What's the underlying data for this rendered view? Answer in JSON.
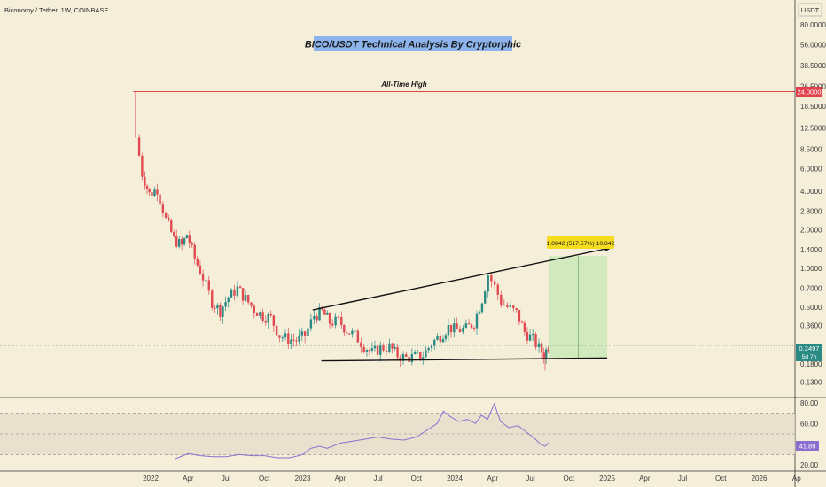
{
  "header": {
    "symbol_info": "Biconomy / Tether, 1W, COINBASE",
    "currency": "USDT"
  },
  "annotations": {
    "title": "BICO/USDT Technical Analysis By Cryptorphic",
    "ath_label": "All-Time High",
    "measure_label": "1.0842 (517.57%) 10,842",
    "ath_price": "24.0000",
    "current_price": "0.2497",
    "countdown": "5d 7h",
    "rsi_value": "41.89"
  },
  "colors": {
    "background": "#f5efda",
    "up_candle": "#2a8a84",
    "down_candle": "#e04a50",
    "ath_line": "#e0414b",
    "rsi_line": "#8a6fd0",
    "target_zone": "#cde8b8",
    "title_bg": "#8db4ec"
  },
  "chart_data": [
    {
      "type": "candlestick",
      "scale": "log",
      "ylim": [
        0.11,
        100
      ],
      "price_ticks": [
        "80.0000",
        "56.0000",
        "38.5000",
        "26.5000",
        "18.5000",
        "12.5000",
        "8.5000",
        "6.0000",
        "4.0000",
        "2.8000",
        "2.0000",
        "1.4000",
        "1.0000",
        "0.7000",
        "0.5000",
        "0.3600",
        "0.2497",
        "0.1800",
        "0.1300"
      ],
      "x_ticks": [
        "2022",
        "Apr",
        "Jul",
        "Oct",
        "2023",
        "Apr",
        "Jul",
        "Oct",
        "2024",
        "Apr",
        "Jul",
        "Oct",
        "2025",
        "Apr",
        "Jul",
        "Oct",
        "2026",
        "Ap"
      ],
      "price_path": [
        [
          "2021-12-01",
          10.5
        ],
        [
          "2021-12-15",
          5.5
        ],
        [
          "2022-01-01",
          3.8
        ],
        [
          "2022-01-20",
          4.2
        ],
        [
          "2022-02-10",
          2.4
        ],
        [
          "2022-03-01",
          1.7
        ],
        [
          "2022-03-20",
          1.5
        ],
        [
          "2022-04-01",
          1.85
        ],
        [
          "2022-04-20",
          1.2
        ],
        [
          "2022-05-10",
          0.85
        ],
        [
          "2022-06-01",
          0.55
        ],
        [
          "2022-06-20",
          0.47
        ],
        [
          "2022-07-10",
          0.6
        ],
        [
          "2022-08-01",
          0.7
        ],
        [
          "2022-08-20",
          0.58
        ],
        [
          "2022-09-10",
          0.48
        ],
        [
          "2022-10-01",
          0.43
        ],
        [
          "2022-10-20",
          0.41
        ],
        [
          "2022-11-10",
          0.3
        ],
        [
          "2022-12-01",
          0.28
        ],
        [
          "2022-12-20",
          0.275
        ],
        [
          "2023-01-10",
          0.3
        ],
        [
          "2023-02-01",
          0.43
        ],
        [
          "2023-02-20",
          0.46
        ],
        [
          "2023-03-10",
          0.38
        ],
        [
          "2023-04-01",
          0.39
        ],
        [
          "2023-04-20",
          0.33
        ],
        [
          "2023-05-10",
          0.3
        ],
        [
          "2023-06-01",
          0.25
        ],
        [
          "2023-06-20",
          0.22
        ],
        [
          "2023-07-10",
          0.24
        ],
        [
          "2023-08-01",
          0.245
        ],
        [
          "2023-08-20",
          0.21
        ],
        [
          "2023-09-10",
          0.2
        ],
        [
          "2023-10-01",
          0.205
        ],
        [
          "2023-10-20",
          0.21
        ],
        [
          "2023-11-10",
          0.26
        ],
        [
          "2023-12-01",
          0.3
        ],
        [
          "2023-12-20",
          0.35
        ],
        [
          "2024-01-10",
          0.33
        ],
        [
          "2024-02-01",
          0.34
        ],
        [
          "2024-02-20",
          0.38
        ],
        [
          "2024-03-10",
          0.58
        ],
        [
          "2024-03-25",
          0.9
        ],
        [
          "2024-04-10",
          0.72
        ],
        [
          "2024-04-25",
          0.55
        ],
        [
          "2024-05-10",
          0.5
        ],
        [
          "2024-06-01",
          0.45
        ],
        [
          "2024-06-20",
          0.32
        ],
        [
          "2024-07-10",
          0.28
        ],
        [
          "2024-07-25",
          0.24
        ],
        [
          "2024-08-05",
          0.21
        ],
        [
          "2024-08-15",
          0.25
        ]
      ],
      "lows": [
        [
          "2024-08-05",
          0.16
        ]
      ],
      "rsi": {
        "ylim": [
          15,
          85
        ],
        "ticks": [
          "80.00",
          "60.00",
          "20.00"
        ],
        "levels": [
          70,
          50,
          30
        ],
        "path": [
          [
            "2022-03-01",
            26
          ],
          [
            "2022-04-01",
            31
          ],
          [
            "2022-05-01",
            29
          ],
          [
            "2022-06-01",
            28
          ],
          [
            "2022-07-01",
            28
          ],
          [
            "2022-08-01",
            30
          ],
          [
            "2022-09-01",
            29
          ],
          [
            "2022-10-01",
            29
          ],
          [
            "2022-11-01",
            27
          ],
          [
            "2022-12-01",
            27
          ],
          [
            "2023-01-01",
            30
          ],
          [
            "2023-01-20",
            36
          ],
          [
            "2023-02-10",
            38
          ],
          [
            "2023-03-01",
            36
          ],
          [
            "2023-04-01",
            41
          ],
          [
            "2023-05-01",
            43
          ],
          [
            "2023-06-01",
            45
          ],
          [
            "2023-07-01",
            47
          ],
          [
            "2023-08-01",
            45
          ],
          [
            "2023-09-01",
            44
          ],
          [
            "2023-10-01",
            47
          ],
          [
            "2023-11-01",
            55
          ],
          [
            "2023-11-20",
            60
          ],
          [
            "2023-12-05",
            72
          ],
          [
            "2023-12-20",
            67
          ],
          [
            "2024-01-10",
            62
          ],
          [
            "2024-02-01",
            64
          ],
          [
            "2024-02-20",
            60
          ],
          [
            "2024-03-05",
            68
          ],
          [
            "2024-03-20",
            64
          ],
          [
            "2024-04-05",
            79
          ],
          [
            "2024-04-20",
            62
          ],
          [
            "2024-05-10",
            56
          ],
          [
            "2024-06-01",
            58
          ],
          [
            "2024-06-20",
            52
          ],
          [
            "2024-07-10",
            46
          ],
          [
            "2024-07-25",
            40
          ],
          [
            "2024-08-05",
            38
          ],
          [
            "2024-08-15",
            41.89
          ]
        ]
      },
      "trendlines": {
        "channel_top": [
          [
            "2023-01-25",
            0.475
          ],
          [
            "2025-01-01",
            1.43
          ]
        ],
        "channel_bottom": [
          [
            "2023-02-15",
            0.19
          ],
          [
            "2025-01-01",
            0.2
          ]
        ],
        "ath": [
          [
            "2021-11-20",
            24
          ],
          [
            "2026-05-01",
            24
          ]
        ],
        "target_zone": {
          "x": [
            "2024-08-15",
            "2025-01-01"
          ],
          "y": [
            0.2,
            1.25
          ]
        }
      }
    }
  ]
}
